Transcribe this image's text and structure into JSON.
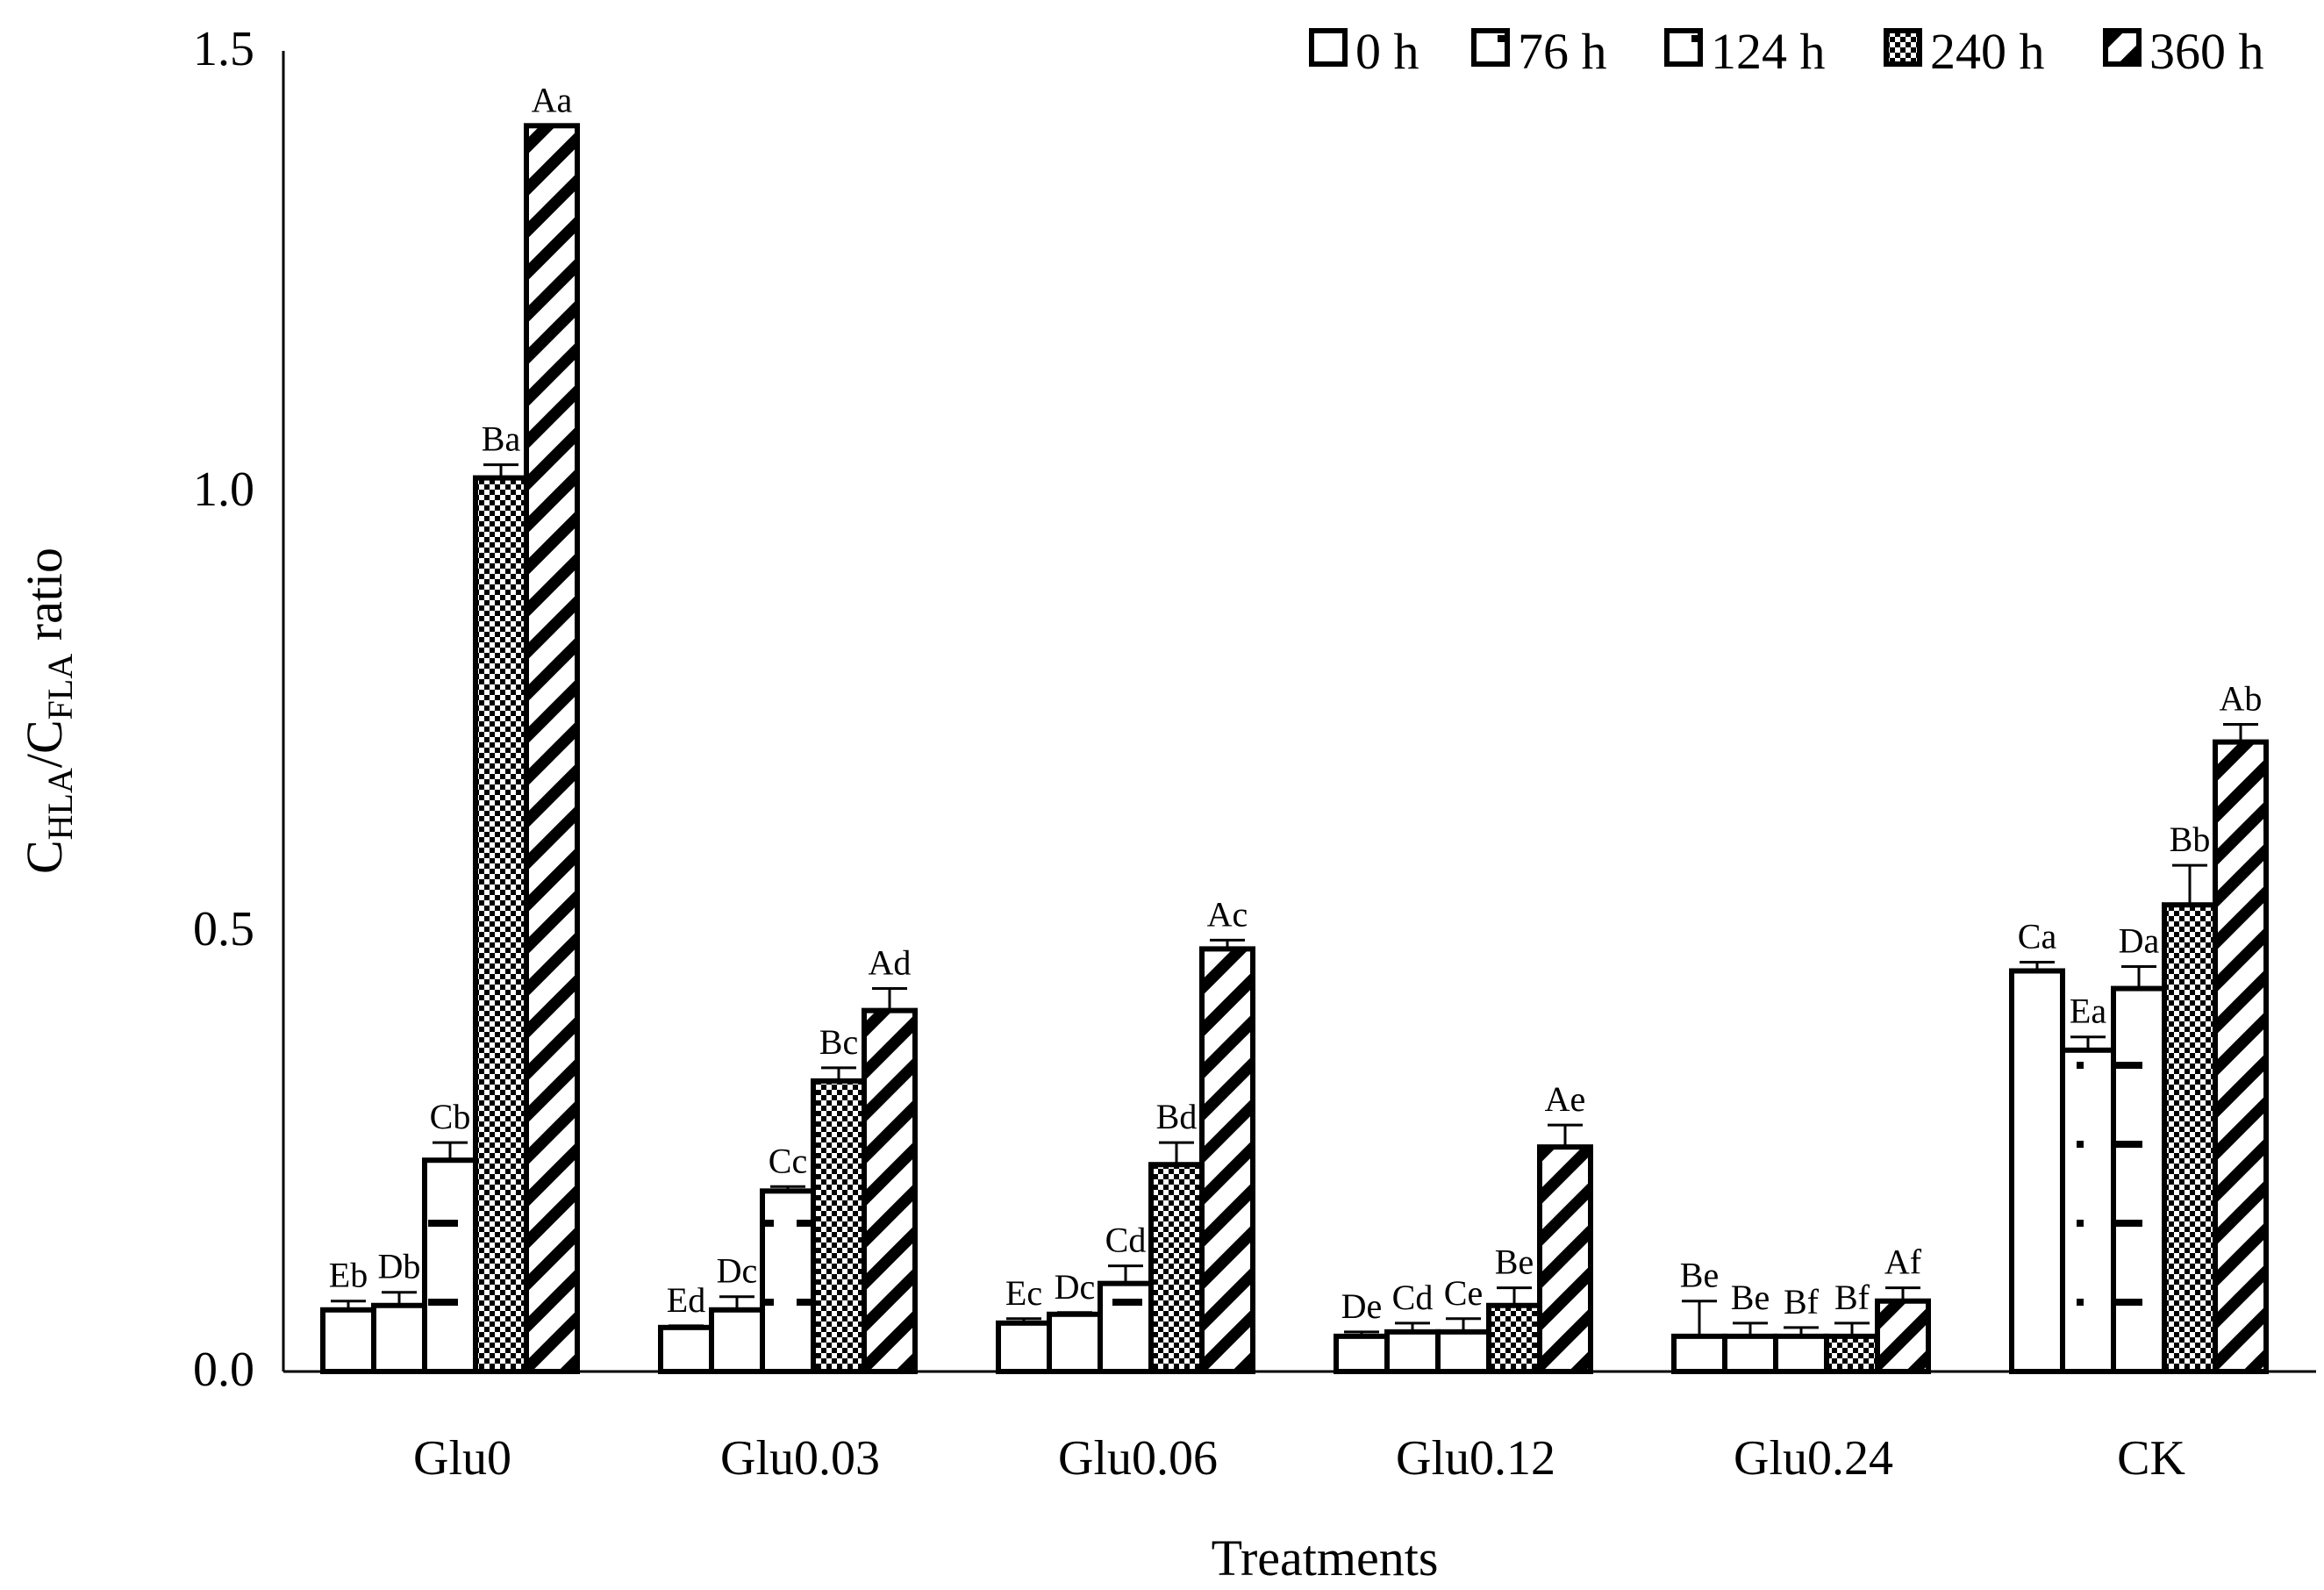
{
  "chart_data": {
    "type": "bar",
    "xlabel": "Treatments",
    "ylabel": {
      "base1": "C",
      "sub1": "HLA",
      "sep": "/C",
      "sub2": "FLA",
      "tail": " ratio"
    },
    "ylim": [
      0,
      1.5
    ],
    "yticks": [
      "0.0",
      "0.5",
      "1.0",
      "1.5"
    ],
    "categories": [
      "Glu0",
      "Glu0.03",
      "Glu0.06",
      "Glu0.12",
      "Glu0.24",
      "CK"
    ],
    "legend_position": "top-right",
    "series": [
      {
        "name": "0 h",
        "pattern": "blank",
        "values": [
          0.07,
          0.05,
          0.055,
          0.04,
          0.04,
          0.455
        ],
        "errors": [
          0.01,
          0.002,
          0.005,
          0.005,
          0.04,
          0.01
        ],
        "labels": [
          "Eb",
          "Ed",
          "Ec",
          "De",
          "Be",
          "Ca"
        ]
      },
      {
        "name": "76 h",
        "pattern": "dots",
        "values": [
          0.075,
          0.07,
          0.065,
          0.045,
          0.04,
          0.365
        ],
        "errors": [
          0.015,
          0.015,
          0.002,
          0.01,
          0.015,
          0.015
        ],
        "labels": [
          "Db",
          "Dc",
          "Dc",
          "Cd",
          "Be",
          "Ea"
        ]
      },
      {
        "name": "124 h",
        "pattern": "dashes",
        "values": [
          0.24,
          0.205,
          0.1,
          0.045,
          0.04,
          0.435
        ],
        "errors": [
          0.02,
          0.005,
          0.02,
          0.015,
          0.01,
          0.025
        ],
        "labels": [
          "Cb",
          "Cc",
          "Cd",
          "Ce",
          "Bf",
          "Da"
        ]
      },
      {
        "name": "240 h",
        "pattern": "check",
        "values": [
          1.015,
          0.33,
          0.235,
          0.075,
          0.04,
          0.53
        ],
        "errors": [
          0.015,
          0.015,
          0.025,
          0.02,
          0.015,
          0.045
        ],
        "labels": [
          "Ba",
          "Bc",
          "Bd",
          "Be",
          "Bf",
          "Bb"
        ]
      },
      {
        "name": "360 h",
        "pattern": "diagonal",
        "values": [
          1.415,
          0.41,
          0.48,
          0.255,
          0.08,
          0.715
        ],
        "errors": [
          0.0,
          0.025,
          0.01,
          0.025,
          0.015,
          0.02
        ],
        "labels": [
          "Aa",
          "Ad",
          "Ac",
          "Ae",
          "Af",
          "Ab"
        ]
      }
    ]
  }
}
